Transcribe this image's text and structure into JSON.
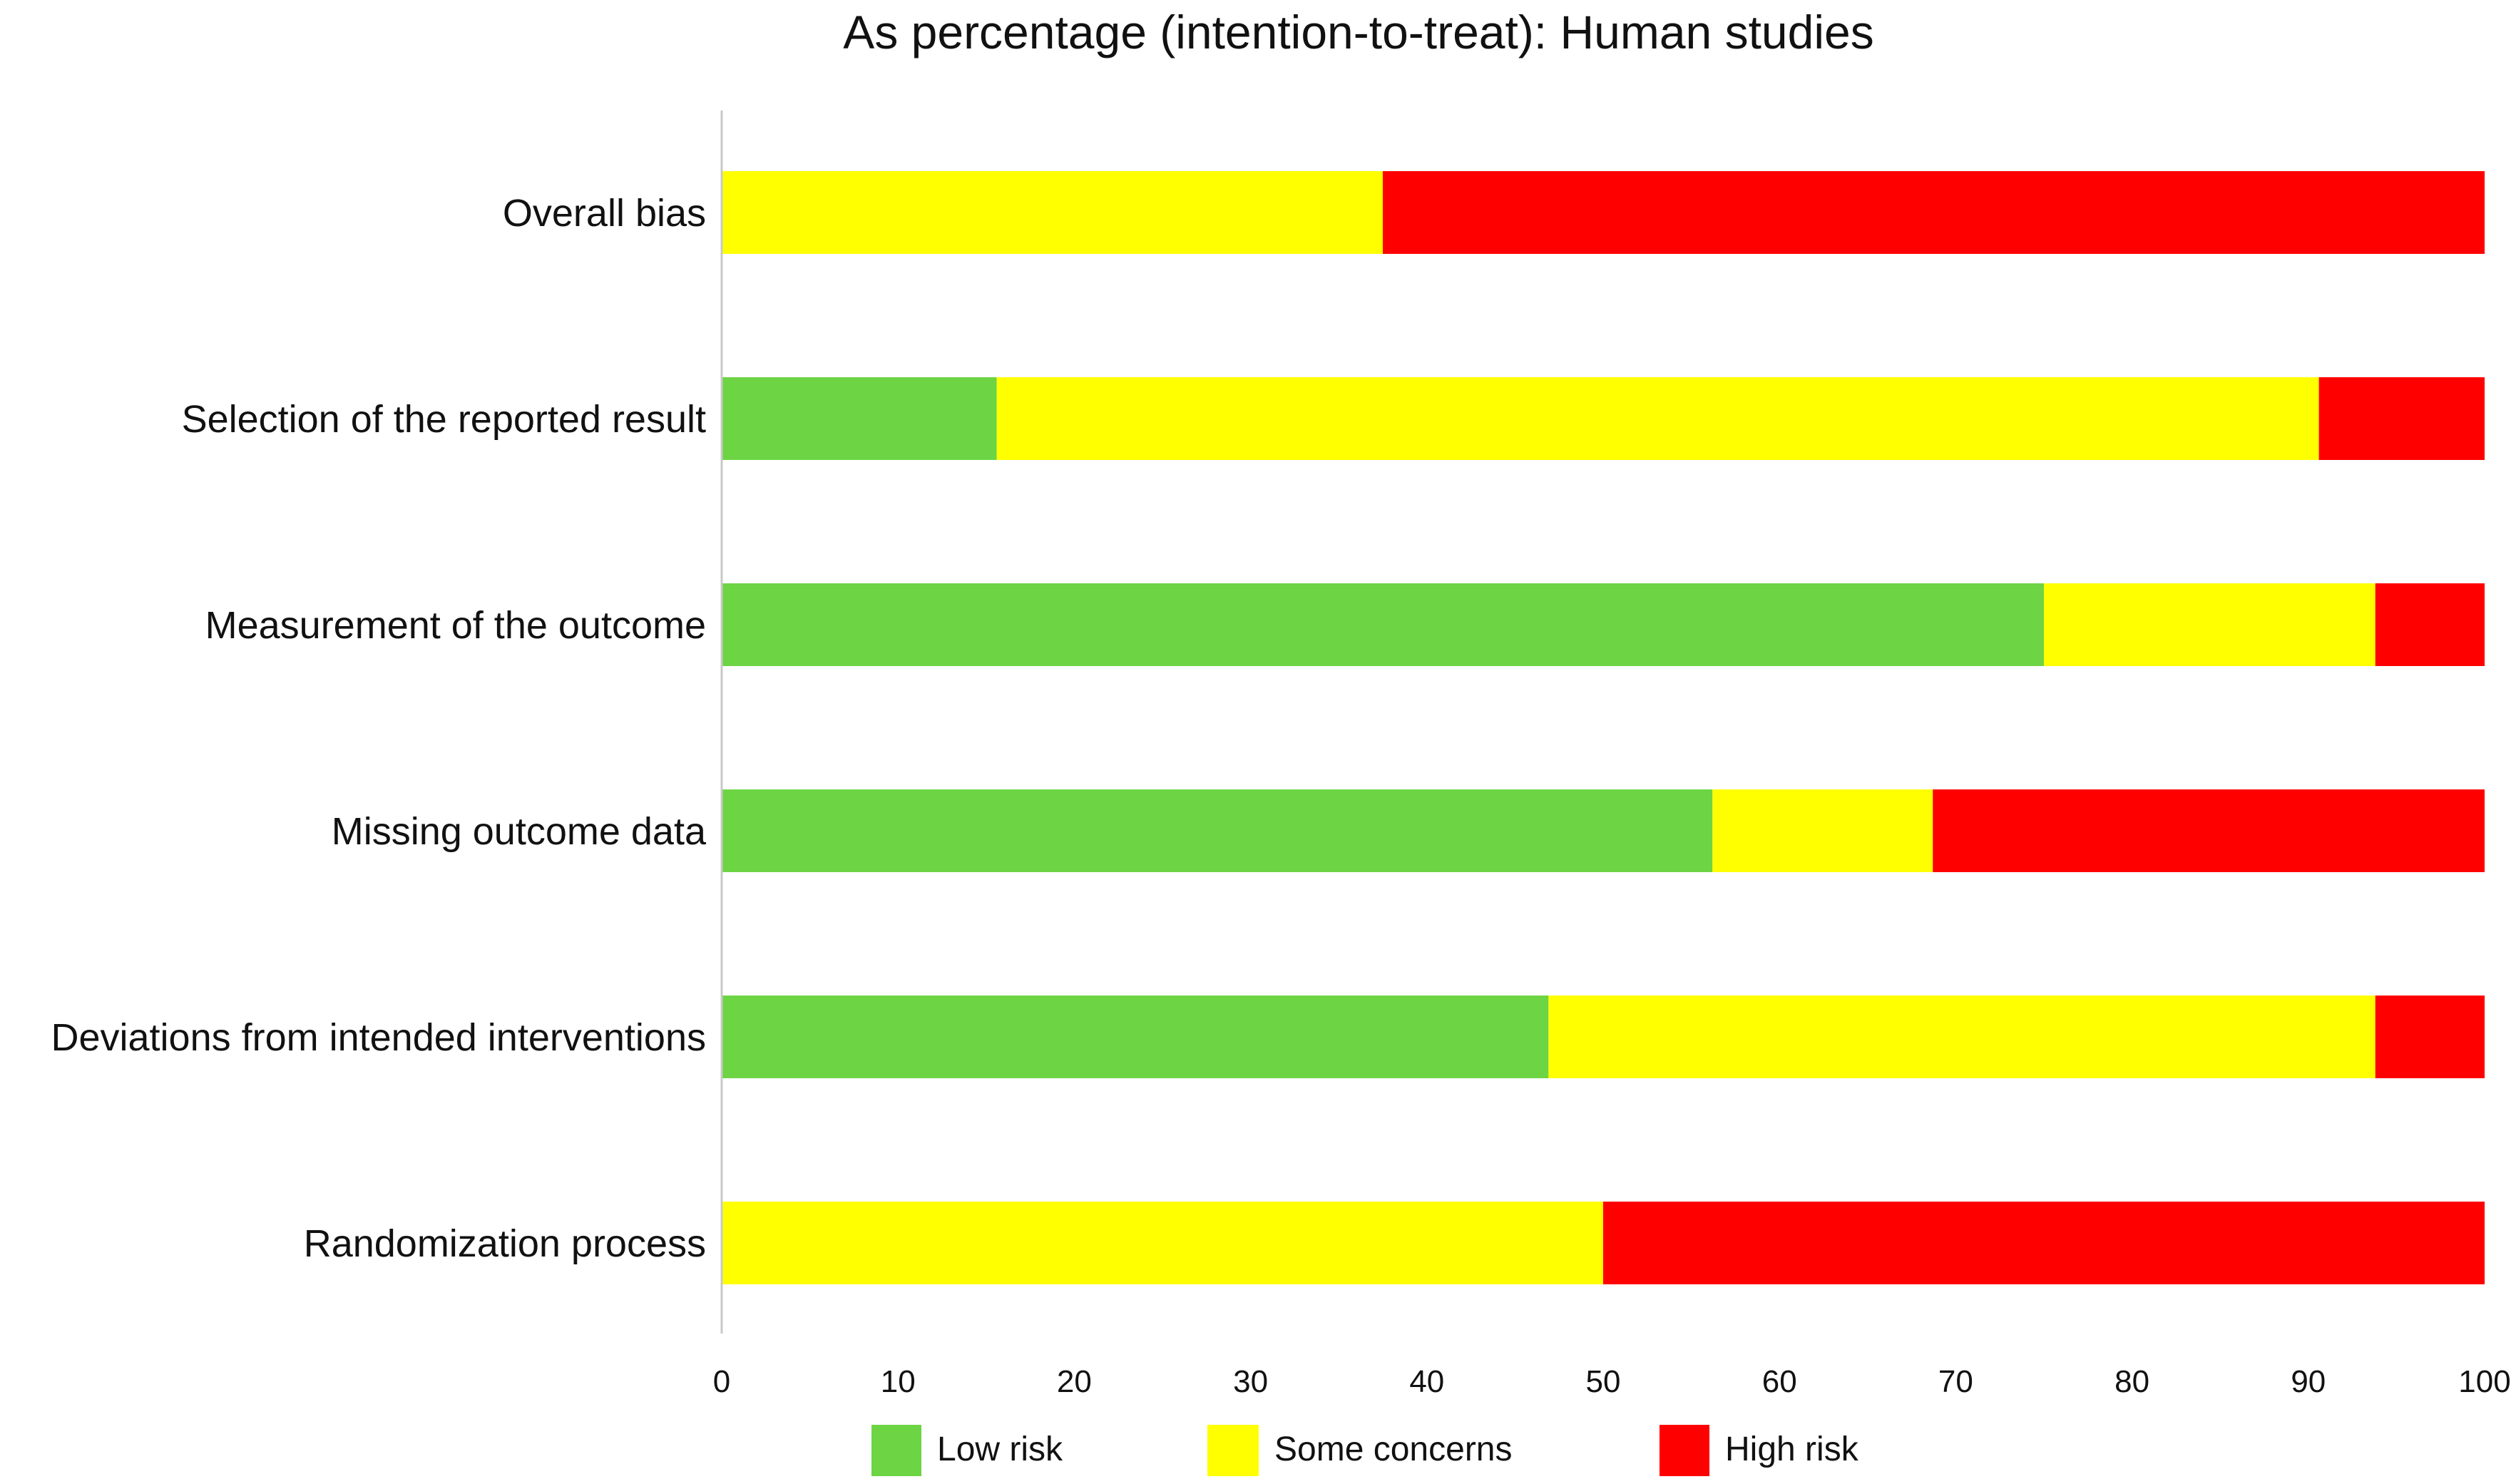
{
  "chart_data": {
    "type": "bar",
    "orientation": "horizontal",
    "stacked": true,
    "title": "As percentage (intention-to-treat): Human studies",
    "xlabel": "",
    "ylabel": "",
    "xlim": [
      0,
      100
    ],
    "x_ticks": [
      "0",
      "10",
      "20",
      "30",
      "40",
      "50",
      "60",
      "70",
      "80",
      "90",
      "100"
    ],
    "grid": false,
    "legend_position": "bottom",
    "categories": [
      "Overall bias",
      "Selection of the reported result",
      "Measurement of the outcome",
      "Missing outcome data",
      "Deviations from intended interventions",
      "Randomization process"
    ],
    "series": [
      {
        "name": "Low risk",
        "color": "#6dd444",
        "values": [
          0,
          15.6,
          75,
          56.2,
          46.9,
          0
        ]
      },
      {
        "name": "Some concerns",
        "color": "#ffff00",
        "values": [
          37.5,
          75,
          18.8,
          12.5,
          46.9,
          50
        ]
      },
      {
        "name": "High risk",
        "color": "#ff0000",
        "values": [
          62.5,
          9.4,
          6.2,
          31.3,
          6.2,
          50
        ]
      }
    ]
  }
}
